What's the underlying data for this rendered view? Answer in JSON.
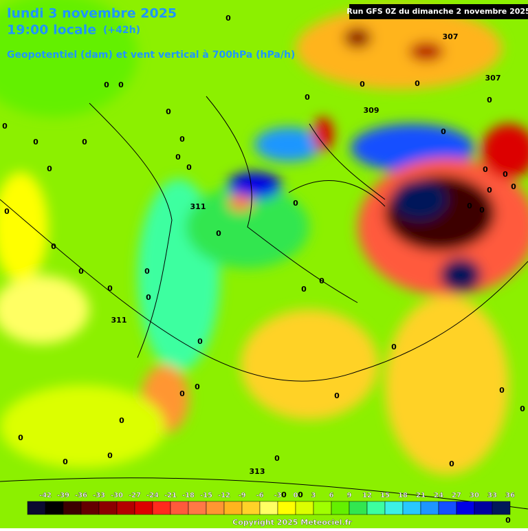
{
  "header": {
    "date": "lundi 3 novembre 2025",
    "time": "19:00 locale",
    "lead": "(+42h)",
    "field": "Geopotentiel (dam) et vent vertical à 700hPa (hPa/h)",
    "run": "Run GFS 0Z du dimanche 2 novembre 2025"
  },
  "contour_labels": [
    "307",
    "307",
    "309",
    "311",
    "311",
    "313",
    "0",
    "0",
    "0",
    "0",
    "0",
    "0",
    "0",
    "0",
    "0",
    "0",
    "0",
    "0",
    "0",
    "0",
    "0",
    "0",
    "0",
    "0",
    "0",
    "0",
    "0",
    "0",
    "0",
    "0",
    "0",
    "0",
    "0",
    "0",
    "0",
    "0",
    "0",
    "0",
    "0",
    "0",
    "0",
    "0",
    "0",
    "0",
    "0",
    "0",
    "0",
    "0",
    "0",
    "0",
    "0",
    "0",
    "0",
    "0"
  ],
  "legend": {
    "ticks": [
      -42,
      -39,
      -36,
      -33,
      -30,
      -27,
      -24,
      -21,
      -18,
      -15,
      -12,
      -9,
      -6,
      -3,
      0,
      3,
      6,
      9,
      12,
      15,
      18,
      21,
      24,
      27,
      30,
      33,
      36
    ],
    "colors": [
      "#0a0a30",
      "#000000",
      "#3c0000",
      "#640000",
      "#8c0000",
      "#b40000",
      "#dc0000",
      "#ff2a1e",
      "#ff5a3c",
      "#ff7846",
      "#ff9632",
      "#ffb41e",
      "#ffd228",
      "#ffff64",
      "#ffff00",
      "#dcff00",
      "#a0ff00",
      "#64f000",
      "#32e650",
      "#3cffa0",
      "#3cf0e6",
      "#28c8ff",
      "#1e96ff",
      "#1450ff",
      "#0000e6",
      "#0000a0",
      "#00185a"
    ]
  },
  "footer": {
    "copyright": "Copyright 2025 Meteociel.fr"
  }
}
